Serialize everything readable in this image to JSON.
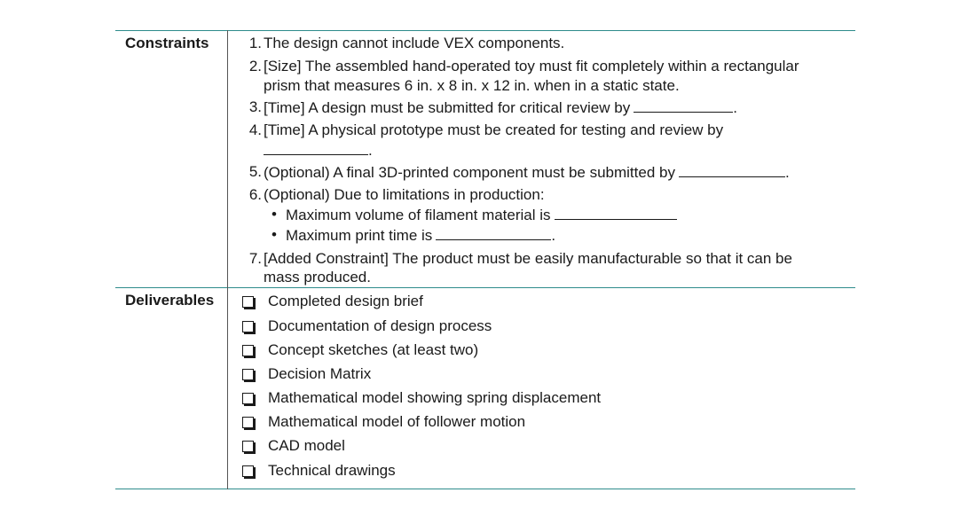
{
  "constraints": {
    "label": "Constraints",
    "items": [
      {
        "num": "1.",
        "text": "The design cannot include VEX components."
      },
      {
        "num": "2.",
        "text": "[Size] The assembled hand-operated toy must fit completely within a rectangular",
        "text2": "prism that measures 6 in. x 8 in. x 12 in. when in a static state."
      },
      {
        "num": "3.",
        "text": "[Time] A design must be submitted for critical review by",
        "trail": "."
      },
      {
        "num": "4.",
        "text": "[Time] A physical prototype must be created for testing and review by",
        "trail": "."
      },
      {
        "num": "5.",
        "text": "(Optional) A final 3D-printed component must be submitted by",
        "trail": "."
      },
      {
        "num": "6.",
        "text": "(Optional) Due to limitations in production:",
        "subitems": [
          {
            "bullet": "•",
            "text": "Maximum volume of filament material is"
          },
          {
            "bullet": "•",
            "text": "Maximum print time is",
            "trail": "."
          }
        ]
      },
      {
        "num": "7.",
        "text": "[Added Constraint] The product must be easily manufacturable so that it can be",
        "text2": "mass produced."
      }
    ]
  },
  "deliverables": {
    "label": "Deliverables",
    "items": [
      "Completed design brief",
      "Documentation of design process",
      "Concept sketches (at least two)",
      "Decision Matrix",
      "Mathematical model showing spring displacement",
      "Mathematical model of follower motion",
      "CAD model",
      "Technical drawings"
    ]
  },
  "colors": {
    "rule": "#2e8c8c",
    "text": "#1a1a1a"
  }
}
